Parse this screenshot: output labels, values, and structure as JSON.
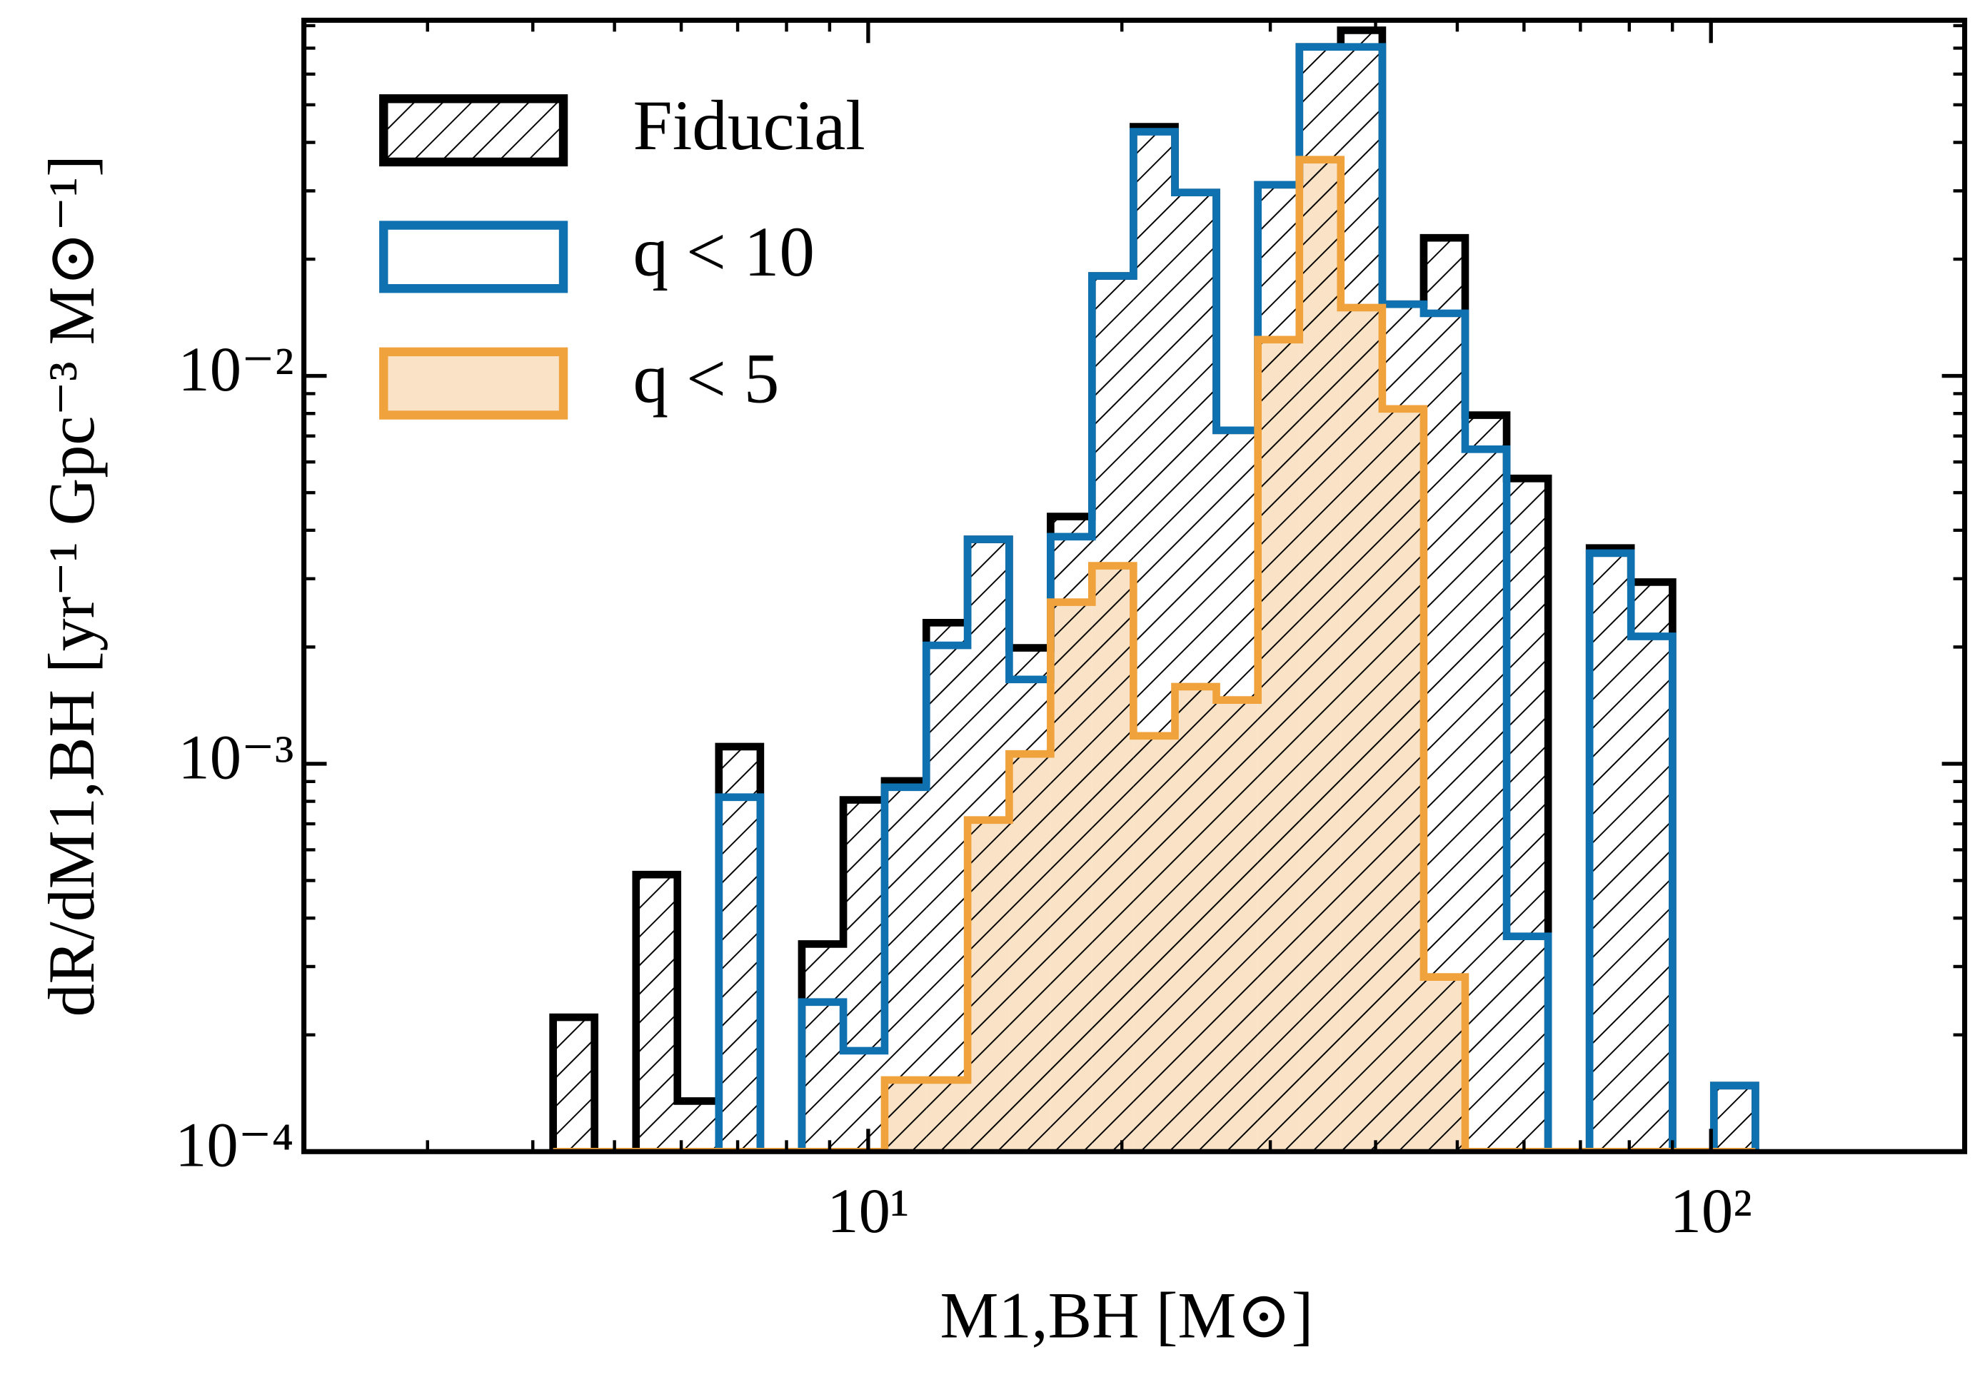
{
  "chart_data": {
    "type": "histogram",
    "x_label": "M1,BH [M⊙]",
    "y_label": "dR/dM1,BH [yr⁻¹ Gpc⁻³ M⊙⁻¹]",
    "xscale": "log",
    "yscale": "log",
    "xlim": [
      2.14,
      200
    ],
    "ylim": [
      0.0001,
      0.0826
    ],
    "xticks": [
      {
        "value": 10,
        "label": "10¹"
      },
      {
        "value": 100,
        "label": "10²"
      }
    ],
    "xminor_ticks": [
      3,
      4,
      5,
      6,
      7,
      8,
      9,
      20,
      30,
      40,
      50,
      60,
      70,
      80,
      90
    ],
    "yticks": [
      {
        "value": 0.0001,
        "label": "10⁻⁴"
      },
      {
        "value": 0.001,
        "label": "10⁻³"
      },
      {
        "value": 0.01,
        "label": "10⁻²"
      }
    ],
    "yminor_ticks": [
      0.0002,
      0.0003,
      0.0004,
      0.0005,
      0.0006,
      0.0007,
      0.0008,
      0.0009,
      0.002,
      0.003,
      0.004,
      0.005,
      0.006,
      0.007,
      0.008,
      0.009,
      0.02,
      0.03,
      0.04,
      0.05,
      0.06,
      0.07,
      0.08
    ],
    "legend": "upper left",
    "bins": [
      4.228,
      4.735,
      5.303,
      5.938,
      6.65,
      7.448,
      8.341,
      9.343,
      10.46,
      11.72,
      13.12,
      14.7,
      16.46,
      18.43,
      20.64,
      23.12,
      25.89,
      29.0,
      32.48,
      36.37,
      40.74,
      45.62,
      51.09,
      57.22,
      64.09,
      71.77,
      80.37,
      90.03,
      100.8,
      112.9
    ],
    "series": [
      {
        "name": "Fiducial",
        "color": "#000000",
        "hatch": "//",
        "values": [
          0.000222,
          0,
          0.000518,
          0.000135,
          0.001107,
          0,
          0.000343,
          0.000807,
          0.000903,
          0.00231,
          0.00379,
          0.00199,
          0.00434,
          0.0181,
          0.0439,
          0.0297,
          0.00724,
          0.0311,
          0.0705,
          0.0778,
          0.0153,
          0.0227,
          0.00792,
          0.00544,
          0,
          0.0036,
          0.00294,
          0,
          0.000148
        ]
      },
      {
        "name": "q < 10",
        "color": "#1071b0",
        "values": [
          0,
          0,
          0,
          0,
          0.00082,
          0,
          0.000243,
          0.000182,
          0.00087,
          0.00202,
          0.00379,
          0.00165,
          0.00385,
          0.0181,
          0.0426,
          0.0297,
          0.00724,
          0.0311,
          0.0705,
          0.0705,
          0.0153,
          0.0145,
          0.00647,
          0.000359,
          0,
          0.00349,
          0.00213,
          0,
          0.000148
        ]
      },
      {
        "name": "q < 5",
        "color": "#f0a23c",
        "fill_color": "#f9e2c5",
        "values": [
          0,
          0,
          0,
          0,
          0,
          0,
          0,
          0,
          0.000153,
          0.000153,
          0.000716,
          0.00106,
          0.00261,
          0.00324,
          0.00118,
          0.00158,
          0.00146,
          0.0124,
          0.0361,
          0.015,
          0.00822,
          0.000282,
          0,
          0,
          0,
          0,
          0,
          0,
          0
        ]
      }
    ]
  }
}
